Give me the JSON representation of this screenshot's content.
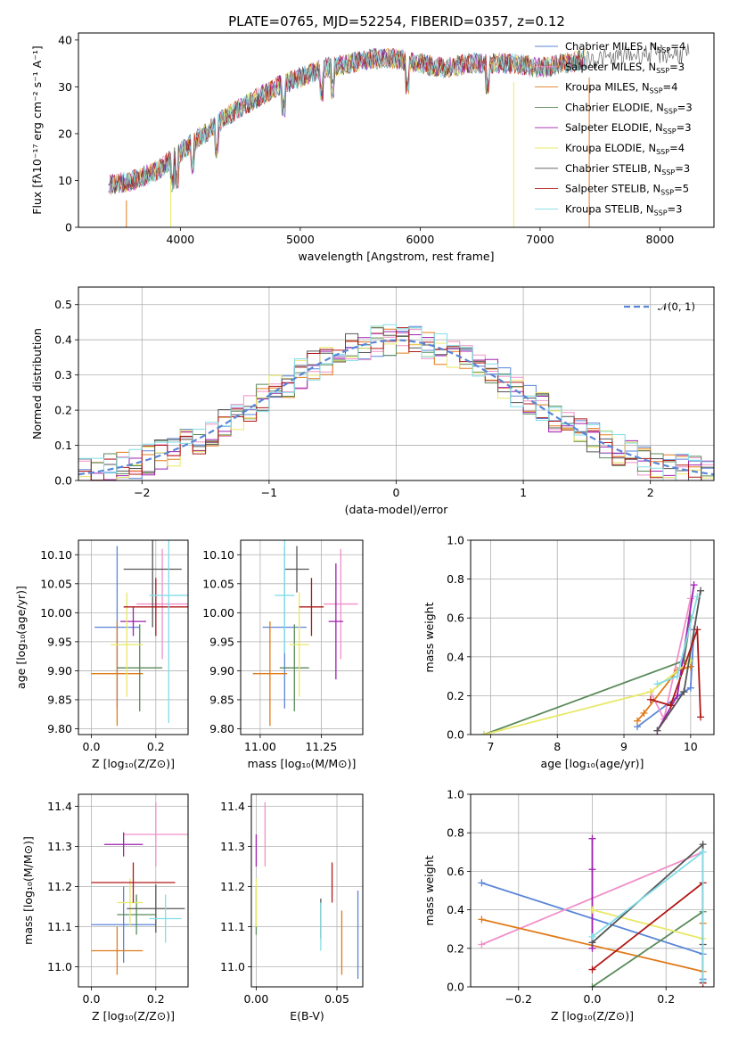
{
  "figure": {
    "title": "PLATE=0765, MJD=52254, FIBERID=0357, z=0.12"
  },
  "colors": {
    "Chabrier MILES": "#5a86d8",
    "Salpeter MILES": "#f090c8",
    "Kroupa MILES": "#e07b1a",
    "Chabrier ELODIE": "#5a8a5a",
    "Salpeter ELODIE": "#a020b0",
    "Kroupa ELODIE": "#e8e868",
    "Chabrier STELIB": "#555555",
    "Salpeter STELIB": "#b01818",
    "Kroupa STELIB": "#80dde8"
  },
  "chart_data": [
    {
      "id": "spectrum",
      "type": "line",
      "title": "PLATE=0765, MJD=52254, FIBERID=0357, z=0.12",
      "xlabel": "wavelength [Angstrom, rest frame]",
      "ylabel": "Flux [fλ10⁻¹⁷ erg cm⁻² s⁻¹ A⁻¹]",
      "xlim": [
        3150,
        8450
      ],
      "ylim": [
        0,
        41.5
      ],
      "xticks": [
        4000,
        5000,
        6000,
        7000,
        8000
      ],
      "yticks": [
        0,
        10,
        20,
        30,
        40
      ],
      "legend_position": "top-right",
      "data_x": [
        3400,
        3600,
        3800,
        4000,
        4200,
        4400,
        4600,
        4800,
        5000,
        5200,
        5400,
        5600,
        5800,
        6000,
        6200,
        6400,
        6600,
        6800,
        7000,
        7200,
        7400,
        7600,
        7800,
        8000,
        8200
      ],
      "data_y": [
        9,
        10,
        12,
        16,
        20,
        24,
        27,
        30,
        32,
        34,
        35,
        36,
        36,
        35,
        34,
        35,
        35,
        35,
        34,
        35,
        36,
        36,
        37,
        37,
        37
      ],
      "series": [
        {
          "name": "Chabrier MILES, N_SSP=4"
        },
        {
          "name": "Salpeter MILES, N_SSP=3"
        },
        {
          "name": "Kroupa MILES, N_SSP=4"
        },
        {
          "name": "Chabrier ELODIE, N_SSP=3"
        },
        {
          "name": "Salpeter ELODIE, N_SSP=3"
        },
        {
          "name": "Kroupa ELODIE, N_SSP=4"
        },
        {
          "name": "Chabrier STELIB, N_SSP=3"
        },
        {
          "name": "Salpeter STELIB, N_SSP=5"
        },
        {
          "name": "Kroupa STELIB, N_SSP=3"
        }
      ],
      "legend_labels": [
        {
          "base": "Chabrier MILES, N",
          "n": "4"
        },
        {
          "base": "Salpeter MILES, N",
          "n": "3"
        },
        {
          "base": "Kroupa MILES, N",
          "n": "4"
        },
        {
          "base": "Chabrier ELODIE, N",
          "n": "3"
        },
        {
          "base": "Salpeter ELODIE, N",
          "n": "3"
        },
        {
          "base": "Kroupa ELODIE, N",
          "n": "4"
        },
        {
          "base": "Chabrier STELIB, N",
          "n": "3"
        },
        {
          "base": "Salpeter STELIB, N",
          "n": "5"
        },
        {
          "base": "Kroupa STELIB, N",
          "n": "3"
        }
      ],
      "legend_sub": "SSP"
    },
    {
      "id": "residuals",
      "type": "line",
      "xlabel": "(data-model)/error",
      "ylabel": "Normed distribution",
      "xlim": [
        -2.5,
        2.5
      ],
      "ylim": [
        0,
        0.55
      ],
      "xticks": [
        -2,
        -1,
        0,
        1,
        2
      ],
      "yticks": [
        0.0,
        0.1,
        0.2,
        0.3,
        0.4,
        0.5
      ],
      "grid": true,
      "legend_position": "top-right",
      "gaussian_label": "𝒩(0, 1)"
    },
    {
      "id": "age-vs-Z",
      "type": "scatter",
      "xlabel": "Z [log₁₀(Z/Z⊙)]",
      "ylabel": "age  [log₁₀(age/yr)]",
      "xlim": [
        -0.04,
        0.3
      ],
      "ylim": [
        9.79,
        10.125
      ],
      "xticks": [
        0.0,
        0.2
      ],
      "yticks": [
        9.8,
        9.85,
        9.9,
        9.95,
        10.0,
        10.05,
        10.1
      ],
      "grid": true,
      "points": [
        {
          "series": "Chabrier MILES",
          "x": 0.08,
          "y": 9.975,
          "xerr": 0.07,
          "yerr": 0.14
        },
        {
          "series": "Salpeter MILES",
          "x": 0.22,
          "y": 10.015,
          "xerr": 0.08,
          "yerr": 0.095
        },
        {
          "series": "Kroupa MILES",
          "x": 0.08,
          "y": 9.895,
          "xerr": 0.08,
          "yerr": 0.09
        },
        {
          "series": "Chabrier ELODIE",
          "x": 0.15,
          "y": 9.905,
          "xerr": 0.07,
          "yerr": 0.075
        },
        {
          "series": "Salpeter ELODIE",
          "x": 0.13,
          "y": 9.985,
          "xerr": 0.04,
          "yerr": 0.025
        },
        {
          "series": "Kroupa ELODIE",
          "x": 0.11,
          "y": 9.945,
          "xerr": 0.05,
          "yerr": 0.09
        },
        {
          "series": "Chabrier STELIB",
          "x": 0.19,
          "y": 10.075,
          "xerr": 0.09,
          "yerr": 0.1
        },
        {
          "series": "Salpeter STELIB",
          "x": 0.2,
          "y": 10.01,
          "xerr": 0.1,
          "yerr": 0.05
        },
        {
          "series": "Kroupa STELIB",
          "x": 0.24,
          "y": 10.03,
          "xerr": 0.06,
          "yerr": 0.22
        }
      ]
    },
    {
      "id": "age-vs-mass",
      "type": "scatter",
      "xlabel": "mass [log₁₀(M/M⊙)]",
      "ylabel": "",
      "xlim": [
        10.92,
        11.42
      ],
      "ylim": [
        9.79,
        10.125
      ],
      "xticks": [
        11.0,
        11.25
      ],
      "yticks": [
        9.8,
        9.85,
        9.9,
        9.95,
        10.0,
        10.05,
        10.1
      ],
      "grid": true,
      "points": [
        {
          "series": "Chabrier MILES",
          "x": 11.1,
          "y": 9.975,
          "xerr": 0.09,
          "yerr": 0.14
        },
        {
          "series": "Salpeter MILES",
          "x": 11.33,
          "y": 10.015,
          "xerr": 0.07,
          "yerr": 0.095
        },
        {
          "series": "Kroupa MILES",
          "x": 11.04,
          "y": 9.895,
          "xerr": 0.07,
          "yerr": 0.09
        },
        {
          "series": "Chabrier ELODIE",
          "x": 11.14,
          "y": 9.905,
          "xerr": 0.06,
          "yerr": 0.075
        },
        {
          "series": "Salpeter ELODIE",
          "x": 11.31,
          "y": 9.985,
          "xerr": 0.03,
          "yerr": 0.1
        },
        {
          "series": "Kroupa ELODIE",
          "x": 11.16,
          "y": 9.945,
          "xerr": 0.04,
          "yerr": 0.09
        },
        {
          "series": "Chabrier STELIB",
          "x": 11.15,
          "y": 10.075,
          "xerr": 0.05,
          "yerr": 0.04
        },
        {
          "series": "Salpeter STELIB",
          "x": 11.21,
          "y": 10.01,
          "xerr": 0.05,
          "yerr": 0.05
        },
        {
          "series": "Kroupa STELIB",
          "x": 11.1,
          "y": 10.03,
          "xerr": 0.04,
          "yerr": 0.1
        }
      ]
    },
    {
      "id": "weight-vs-age",
      "type": "line",
      "xlabel": "age  [log₁₀(age/yr)]",
      "ylabel": "mass weight",
      "xlim": [
        6.7,
        10.35
      ],
      "ylim": [
        0,
        1.0
      ],
      "xticks": [
        7,
        8,
        9,
        10
      ],
      "yticks": [
        0.0,
        0.2,
        0.4,
        0.6,
        0.8,
        1.0
      ],
      "grid": true,
      "series": [
        {
          "name": "Chabrier MILES",
          "x": [
            9.2,
            9.9,
            10.0,
            10.05
          ],
          "y": [
            0.04,
            0.22,
            0.24,
            0.54
          ]
        },
        {
          "name": "Salpeter MILES",
          "x": [
            9.4,
            9.6,
            10.0
          ],
          "y": [
            0.22,
            0.08,
            0.7
          ]
        },
        {
          "name": "Kroupa MILES",
          "x": [
            9.2,
            9.3,
            9.8,
            10.0
          ],
          "y": [
            0.07,
            0.11,
            0.33,
            0.35
          ]
        },
        {
          "name": "Chabrier ELODIE",
          "x": [
            6.9,
            9.9,
            10.0
          ],
          "y": [
            0.0,
            0.38,
            0.6
          ]
        },
        {
          "name": "Salpeter ELODIE",
          "x": [
            9.5,
            9.8,
            10.05
          ],
          "y": [
            0.02,
            0.2,
            0.77
          ]
        },
        {
          "name": "Kroupa ELODIE",
          "x": [
            6.9,
            9.4,
            10.0
          ],
          "y": [
            0.0,
            0.22,
            0.38
          ]
        },
        {
          "name": "Chabrier STELIB",
          "x": [
            9.5,
            9.9,
            10.15
          ],
          "y": [
            0.02,
            0.22,
            0.74
          ]
        },
        {
          "name": "Salpeter STELIB",
          "x": [
            9.4,
            9.7,
            10.1,
            10.15
          ],
          "y": [
            0.18,
            0.15,
            0.54,
            0.09
          ]
        },
        {
          "name": "Kroupa STELIB",
          "x": [
            9.5,
            9.8,
            10.1
          ],
          "y": [
            0.26,
            0.3,
            0.71
          ]
        }
      ]
    },
    {
      "id": "mass-vs-Z",
      "type": "scatter",
      "xlabel": "Z [log₁₀(Z/Z⊙)]",
      "ylabel": "mass [log₁₀(M/M⊙)]",
      "xlim": [
        -0.04,
        0.3
      ],
      "ylim": [
        10.95,
        11.43
      ],
      "xticks": [
        0.0,
        0.2
      ],
      "yticks": [
        11.0,
        11.1,
        11.2,
        11.3,
        11.4
      ],
      "grid": true,
      "points": [
        {
          "series": "Chabrier MILES",
          "x": 0.1,
          "y": 11.105,
          "xerr": 0.1,
          "yerr": 0.095
        },
        {
          "series": "Salpeter MILES",
          "x": 0.2,
          "y": 11.33,
          "xerr": 0.1,
          "yerr": 0.08
        },
        {
          "series": "Kroupa MILES",
          "x": 0.08,
          "y": 11.04,
          "xerr": 0.08,
          "yerr": 0.06
        },
        {
          "series": "Chabrier ELODIE",
          "x": 0.14,
          "y": 11.13,
          "xerr": 0.06,
          "yerr": 0.05
        },
        {
          "series": "Salpeter ELODIE",
          "x": 0.1,
          "y": 11.305,
          "xerr": 0.06,
          "yerr": 0.03
        },
        {
          "series": "Kroupa ELODIE",
          "x": 0.12,
          "y": 11.16,
          "xerr": 0.04,
          "yerr": 0.06
        },
        {
          "series": "Chabrier STELIB",
          "x": 0.2,
          "y": 11.145,
          "xerr": 0.09,
          "yerr": 0.06
        },
        {
          "series": "Salpeter STELIB",
          "x": 0.13,
          "y": 11.21,
          "xerr": 0.13,
          "yerr": 0.05
        },
        {
          "series": "Kroupa STELIB",
          "x": 0.23,
          "y": 11.12,
          "xerr": 0.05,
          "yerr": 0.06
        }
      ]
    },
    {
      "id": "mass-vs-ebv",
      "type": "scatter",
      "xlabel": "E(B-V)",
      "ylabel": "",
      "xlim": [
        -0.003,
        0.066
      ],
      "ylim": [
        10.95,
        11.43
      ],
      "xticks": [
        0.0,
        0.05
      ],
      "yticks": [
        11.0,
        11.1,
        11.2,
        11.3,
        11.4
      ],
      "grid": true,
      "points": [
        {
          "series": "Chabrier MILES",
          "x": 0.063,
          "y": 11.08,
          "yerr": 0.11
        },
        {
          "series": "Salpeter MILES",
          "x": 0.0055,
          "y": 11.33,
          "yerr": 0.08
        },
        {
          "series": "Kroupa MILES",
          "x": 0.053,
          "y": 11.06,
          "yerr": 0.08
        },
        {
          "series": "Chabrier ELODIE",
          "x": 0.0,
          "y": 11.14,
          "yerr": 0.06
        },
        {
          "series": "Salpeter ELODIE",
          "x": 0.0,
          "y": 11.29,
          "yerr": 0.04
        },
        {
          "series": "Kroupa ELODIE",
          "x": 0.0,
          "y": 11.16,
          "yerr": 0.06
        },
        {
          "series": "Chabrier STELIB",
          "x": 0.04,
          "y": 11.12,
          "yerr": 0.05
        },
        {
          "series": "Salpeter STELIB",
          "x": 0.047,
          "y": 11.21,
          "yerr": 0.05
        },
        {
          "series": "Kroupa STELIB",
          "x": 0.04,
          "y": 11.1,
          "yerr": 0.06
        }
      ]
    },
    {
      "id": "weight-vs-Z",
      "type": "line",
      "xlabel": "Z [log₁₀(Z/Z⊙)]",
      "ylabel": "mass weight",
      "xlim": [
        -0.33,
        0.33
      ],
      "ylim": [
        0,
        1.0
      ],
      "xticks": [
        -0.2,
        0.0,
        0.2
      ],
      "yticks": [
        0.0,
        0.2,
        0.4,
        0.6,
        0.8,
        1.0
      ],
      "grid": true,
      "series": [
        {
          "name": "Chabrier MILES",
          "x": [
            -0.3,
            0.3,
            0.3
          ],
          "y": [
            0.54,
            0.17,
            0.04
          ]
        },
        {
          "name": "Salpeter MILES",
          "x": [
            -0.3,
            0.3
          ],
          "y": [
            0.22,
            0.7
          ]
        },
        {
          "name": "Kroupa MILES",
          "x": [
            -0.3,
            0.3,
            0.3
          ],
          "y": [
            0.35,
            0.08,
            0.33
          ]
        },
        {
          "name": "Chabrier ELODIE",
          "x": [
            0.0,
            0.3
          ],
          "y": [
            0.0,
            0.39
          ]
        },
        {
          "name": "Salpeter ELODIE",
          "x": [
            0.0,
            0.0,
            0.0
          ],
          "y": [
            0.77,
            0.61,
            0.2
          ]
        },
        {
          "name": "Kroupa ELODIE",
          "x": [
            0.0,
            0.3
          ],
          "y": [
            0.4,
            0.25
          ]
        },
        {
          "name": "Chabrier STELIB",
          "x": [
            0.0,
            0.3,
            0.3
          ],
          "y": [
            0.23,
            0.74,
            0.22
          ]
        },
        {
          "name": "Salpeter STELIB",
          "x": [
            0.0,
            0.3,
            0.3
          ],
          "y": [
            0.09,
            0.54,
            0.02
          ]
        },
        {
          "name": "Kroupa STELIB",
          "x": [
            0.0,
            0.3,
            0.3
          ],
          "y": [
            0.26,
            0.7,
            0.03
          ]
        }
      ]
    }
  ]
}
